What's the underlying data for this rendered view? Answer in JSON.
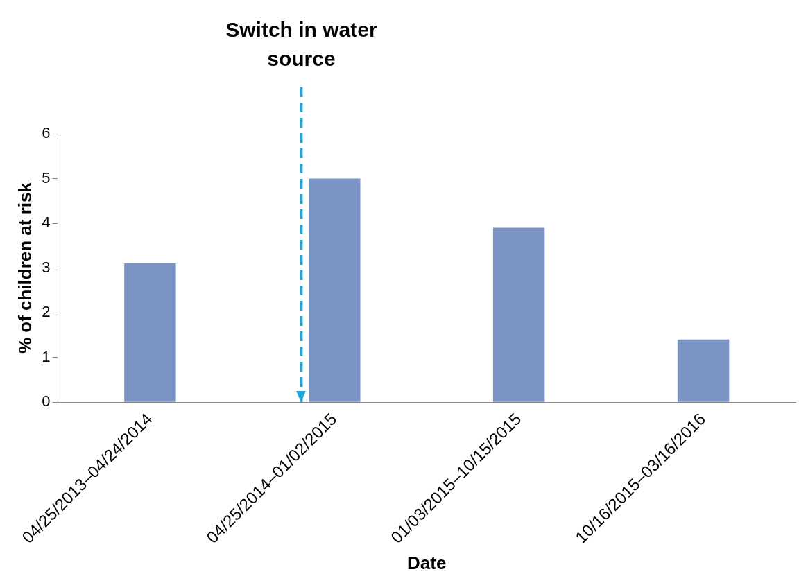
{
  "chart_data": {
    "type": "bar",
    "xlabel": "Date",
    "ylabel": "% of children at risk",
    "categories": [
      "04/25/2013–04/24/2014",
      "04/25/2014–01/02/2015",
      "01/03/2015–10/15/2015",
      "10/16/2015–03/16/2016"
    ],
    "values": [
      3.1,
      5.0,
      3.9,
      1.4
    ],
    "color": "#7a93c2",
    "ylim": [
      0,
      6
    ],
    "yticks": [
      0,
      1,
      2,
      3,
      4,
      5,
      6
    ],
    "grid": false,
    "legend": false,
    "ref_lines": [
      {
        "axis": "x",
        "value": "04/25/2014–01/02/2015",
        "label": "Switch in water source",
        "color": "#1fa6d8",
        "line_style": "dashed"
      }
    ]
  }
}
